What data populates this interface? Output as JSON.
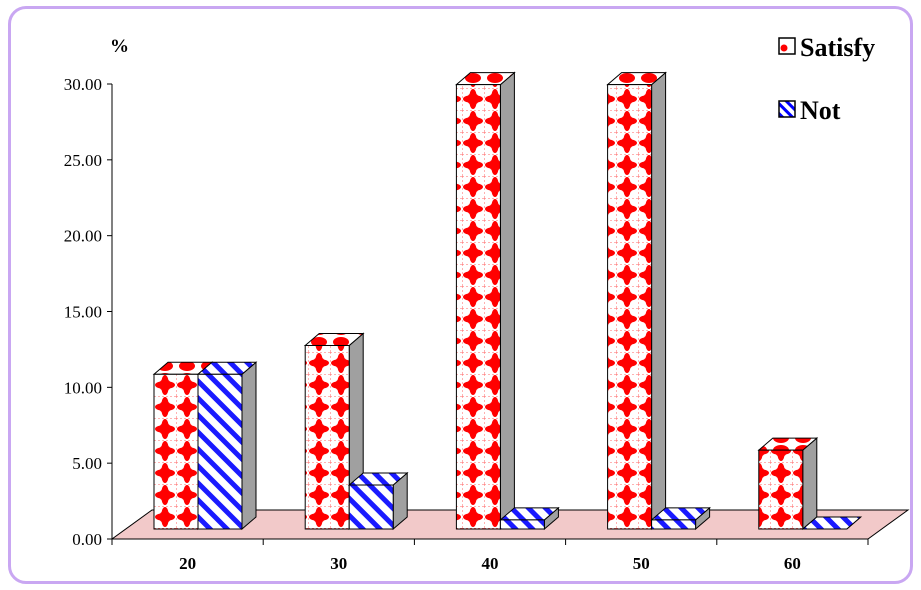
{
  "chart_data": {
    "type": "bar",
    "style": "3d-clustered-column",
    "categories": [
      "20",
      "30",
      "40",
      "50",
      "60"
    ],
    "series": [
      {
        "name": "Satisfy",
        "values": [
          10.2,
          12.1,
          29.3,
          29.3,
          5.2
        ],
        "color": "#ff0000",
        "pattern": "red-dot-lattice"
      },
      {
        "name": "Not",
        "values": [
          10.2,
          2.9,
          0.6,
          0.6,
          0.0
        ],
        "color": "#0000ff",
        "pattern": "blue-diagonal-stripes"
      }
    ],
    "ylabel": "%",
    "yticks": [
      "0.00",
      "5.00",
      "10.00",
      "15.00",
      "20.00",
      "25.00",
      "30.00"
    ],
    "ylim": [
      0,
      30
    ],
    "grid": false,
    "legend_position": "top-right",
    "floor_color": "#f2c9c9",
    "frame_border_color": "#c9a7f2"
  }
}
